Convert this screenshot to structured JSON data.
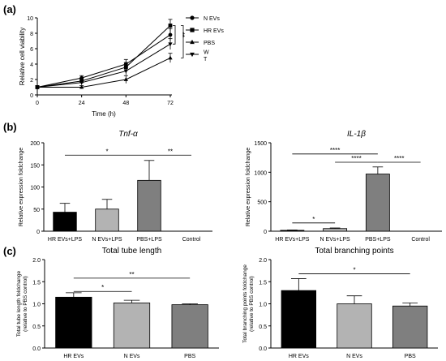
{
  "panels": {
    "a": "(a)",
    "b": "(b)",
    "c": "(c)"
  },
  "chart_data": [
    {
      "type": "line",
      "title": "",
      "xlabel": "Time (h)",
      "ylabel": "Relative cell viability",
      "x": [
        0,
        24,
        48,
        72
      ],
      "xticks": [
        "0",
        "24",
        "48",
        "72"
      ],
      "yticks": [
        "0",
        "2",
        "4",
        "6",
        "8",
        "10"
      ],
      "ylim": [
        0,
        10
      ],
      "series": [
        {
          "name": "N EVs",
          "marker": "circle",
          "values": [
            1.0,
            2.2,
            4.0,
            7.8
          ],
          "errors": [
            0.2,
            0.3,
            0.6,
            0.8
          ]
        },
        {
          "name": "HR EVs",
          "marker": "square",
          "values": [
            1.0,
            1.8,
            3.6,
            9.0
          ],
          "errors": [
            0.2,
            0.3,
            0.6,
            0.8
          ]
        },
        {
          "name": "PBS",
          "marker": "triangle",
          "values": [
            1.0,
            1.0,
            2.0,
            4.8
          ],
          "errors": [
            0.1,
            0.2,
            0.5,
            0.6
          ]
        },
        {
          "name": "W T",
          "marker": "triangle-down",
          "values": [
            1.0,
            1.6,
            3.1,
            6.6
          ],
          "errors": [
            0.2,
            0.3,
            0.5,
            0.7
          ]
        }
      ],
      "annotations": [
        "**",
        "*"
      ]
    },
    {
      "type": "bar",
      "title": "Tnf-α",
      "ylabel": "Relative expression foldchange",
      "categories": [
        "HR EVs+LPS",
        "N EVs+LPS",
        "PBS+LPS",
        "Control"
      ],
      "values": [
        43,
        50,
        115,
        0
      ],
      "errors": [
        20,
        22,
        45,
        0
      ],
      "colors": [
        "#000000",
        "#b3b3b3",
        "#7f7f7f",
        "#ffffff"
      ],
      "yticks": [
        "0",
        "50",
        "100",
        "150",
        "200"
      ],
      "ylim": [
        0,
        200
      ],
      "significance": [
        {
          "from": 0,
          "to": 2,
          "y": 172,
          "label": "*"
        },
        {
          "from": 2,
          "to": 3,
          "y": 172,
          "label": "**"
        }
      ]
    },
    {
      "type": "bar",
      "title": "IL-1β",
      "ylabel": "Relative expression foldchange",
      "categories": [
        "HR EVs+LPS",
        "N EVs+LPS",
        "PBS+LPS",
        "Control"
      ],
      "values": [
        15,
        45,
        970,
        0
      ],
      "errors": [
        5,
        10,
        120,
        0
      ],
      "colors": [
        "#000000",
        "#b3b3b3",
        "#7f7f7f",
        "#ffffff"
      ],
      "yticks": [
        "0",
        "500",
        "1000",
        "1500"
      ],
      "ylim": [
        0,
        1500
      ],
      "significance": [
        {
          "from": 0,
          "to": 1,
          "y": 140,
          "label": "*"
        },
        {
          "from": 0,
          "to": 2,
          "y": 1310,
          "label": "****"
        },
        {
          "from": 1,
          "to": 2,
          "y": 1170,
          "label": "****"
        },
        {
          "from": 2,
          "to": 3,
          "y": 1170,
          "label": "****"
        }
      ]
    },
    {
      "type": "bar",
      "title": "Total tube length",
      "ylabel": "Total tube length foldchange",
      "ylabel2": "(relative to PBS control)",
      "categories": [
        "HR EVs",
        "N EVs",
        "PBS"
      ],
      "values": [
        1.15,
        1.02,
        0.98
      ],
      "errors": [
        0.1,
        0.06,
        0.02
      ],
      "colors": [
        "#000000",
        "#b3b3b3",
        "#7f7f7f"
      ],
      "yticks": [
        "0.0",
        "0.5",
        "1.0",
        "1.5",
        "2.0"
      ],
      "ylim": [
        0,
        2.0
      ],
      "significance": [
        {
          "from": 0,
          "to": 1,
          "y": 1.28,
          "label": "*"
        },
        {
          "from": 0,
          "to": 2,
          "y": 1.58,
          "label": "**"
        }
      ]
    },
    {
      "type": "bar",
      "title": "Total branching points",
      "ylabel": "Total branching points foldchange",
      "ylabel2": "(relative to PBS control)",
      "categories": [
        "HR EVs",
        "N EVs",
        "PBS"
      ],
      "values": [
        1.3,
        1.0,
        0.95
      ],
      "errors": [
        0.27,
        0.18,
        0.07
      ],
      "colors": [
        "#000000",
        "#b3b3b3",
        "#7f7f7f"
      ],
      "yticks": [
        "0.0",
        "0.5",
        "1.0",
        "1.5",
        "2.0"
      ],
      "ylim": [
        0,
        2.0
      ],
      "significance": [
        {
          "from": 0,
          "to": 2,
          "y": 1.68,
          "label": "*"
        }
      ]
    }
  ]
}
